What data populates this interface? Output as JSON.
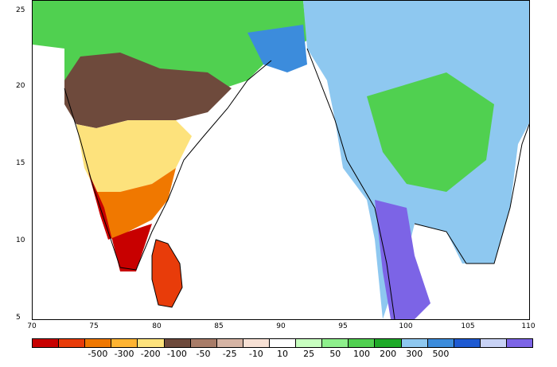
{
  "map": {
    "lat_labels": [
      "25",
      "20",
      "15",
      "10",
      "5"
    ],
    "lon_labels": [
      "70",
      "75",
      "80",
      "85",
      "90",
      "95",
      "100",
      "105",
      "110"
    ],
    "extent": {
      "lon": [
        70,
        110
      ],
      "lat": [
        5,
        26
      ]
    }
  },
  "legend": {
    "colors": [
      "#c80000",
      "#e83c0a",
      "#f07800",
      "#ffb432",
      "#fde27c",
      "#6e4a3c",
      "#a87c68",
      "#d6b4a4",
      "#f7e0d4",
      "#ffffff",
      "#c8ffc0",
      "#8ef08c",
      "#50d050",
      "#1eaa28",
      "#8ec8f0",
      "#3c8cdc",
      "#1e5ad2",
      "#c8d2f5",
      "#7c64e6"
    ],
    "labels": [
      "-500",
      "-300",
      "-200",
      "-100",
      "-50",
      "-25",
      "-10",
      "10",
      "25",
      "50",
      "100",
      "200",
      "300",
      "500"
    ]
  }
}
